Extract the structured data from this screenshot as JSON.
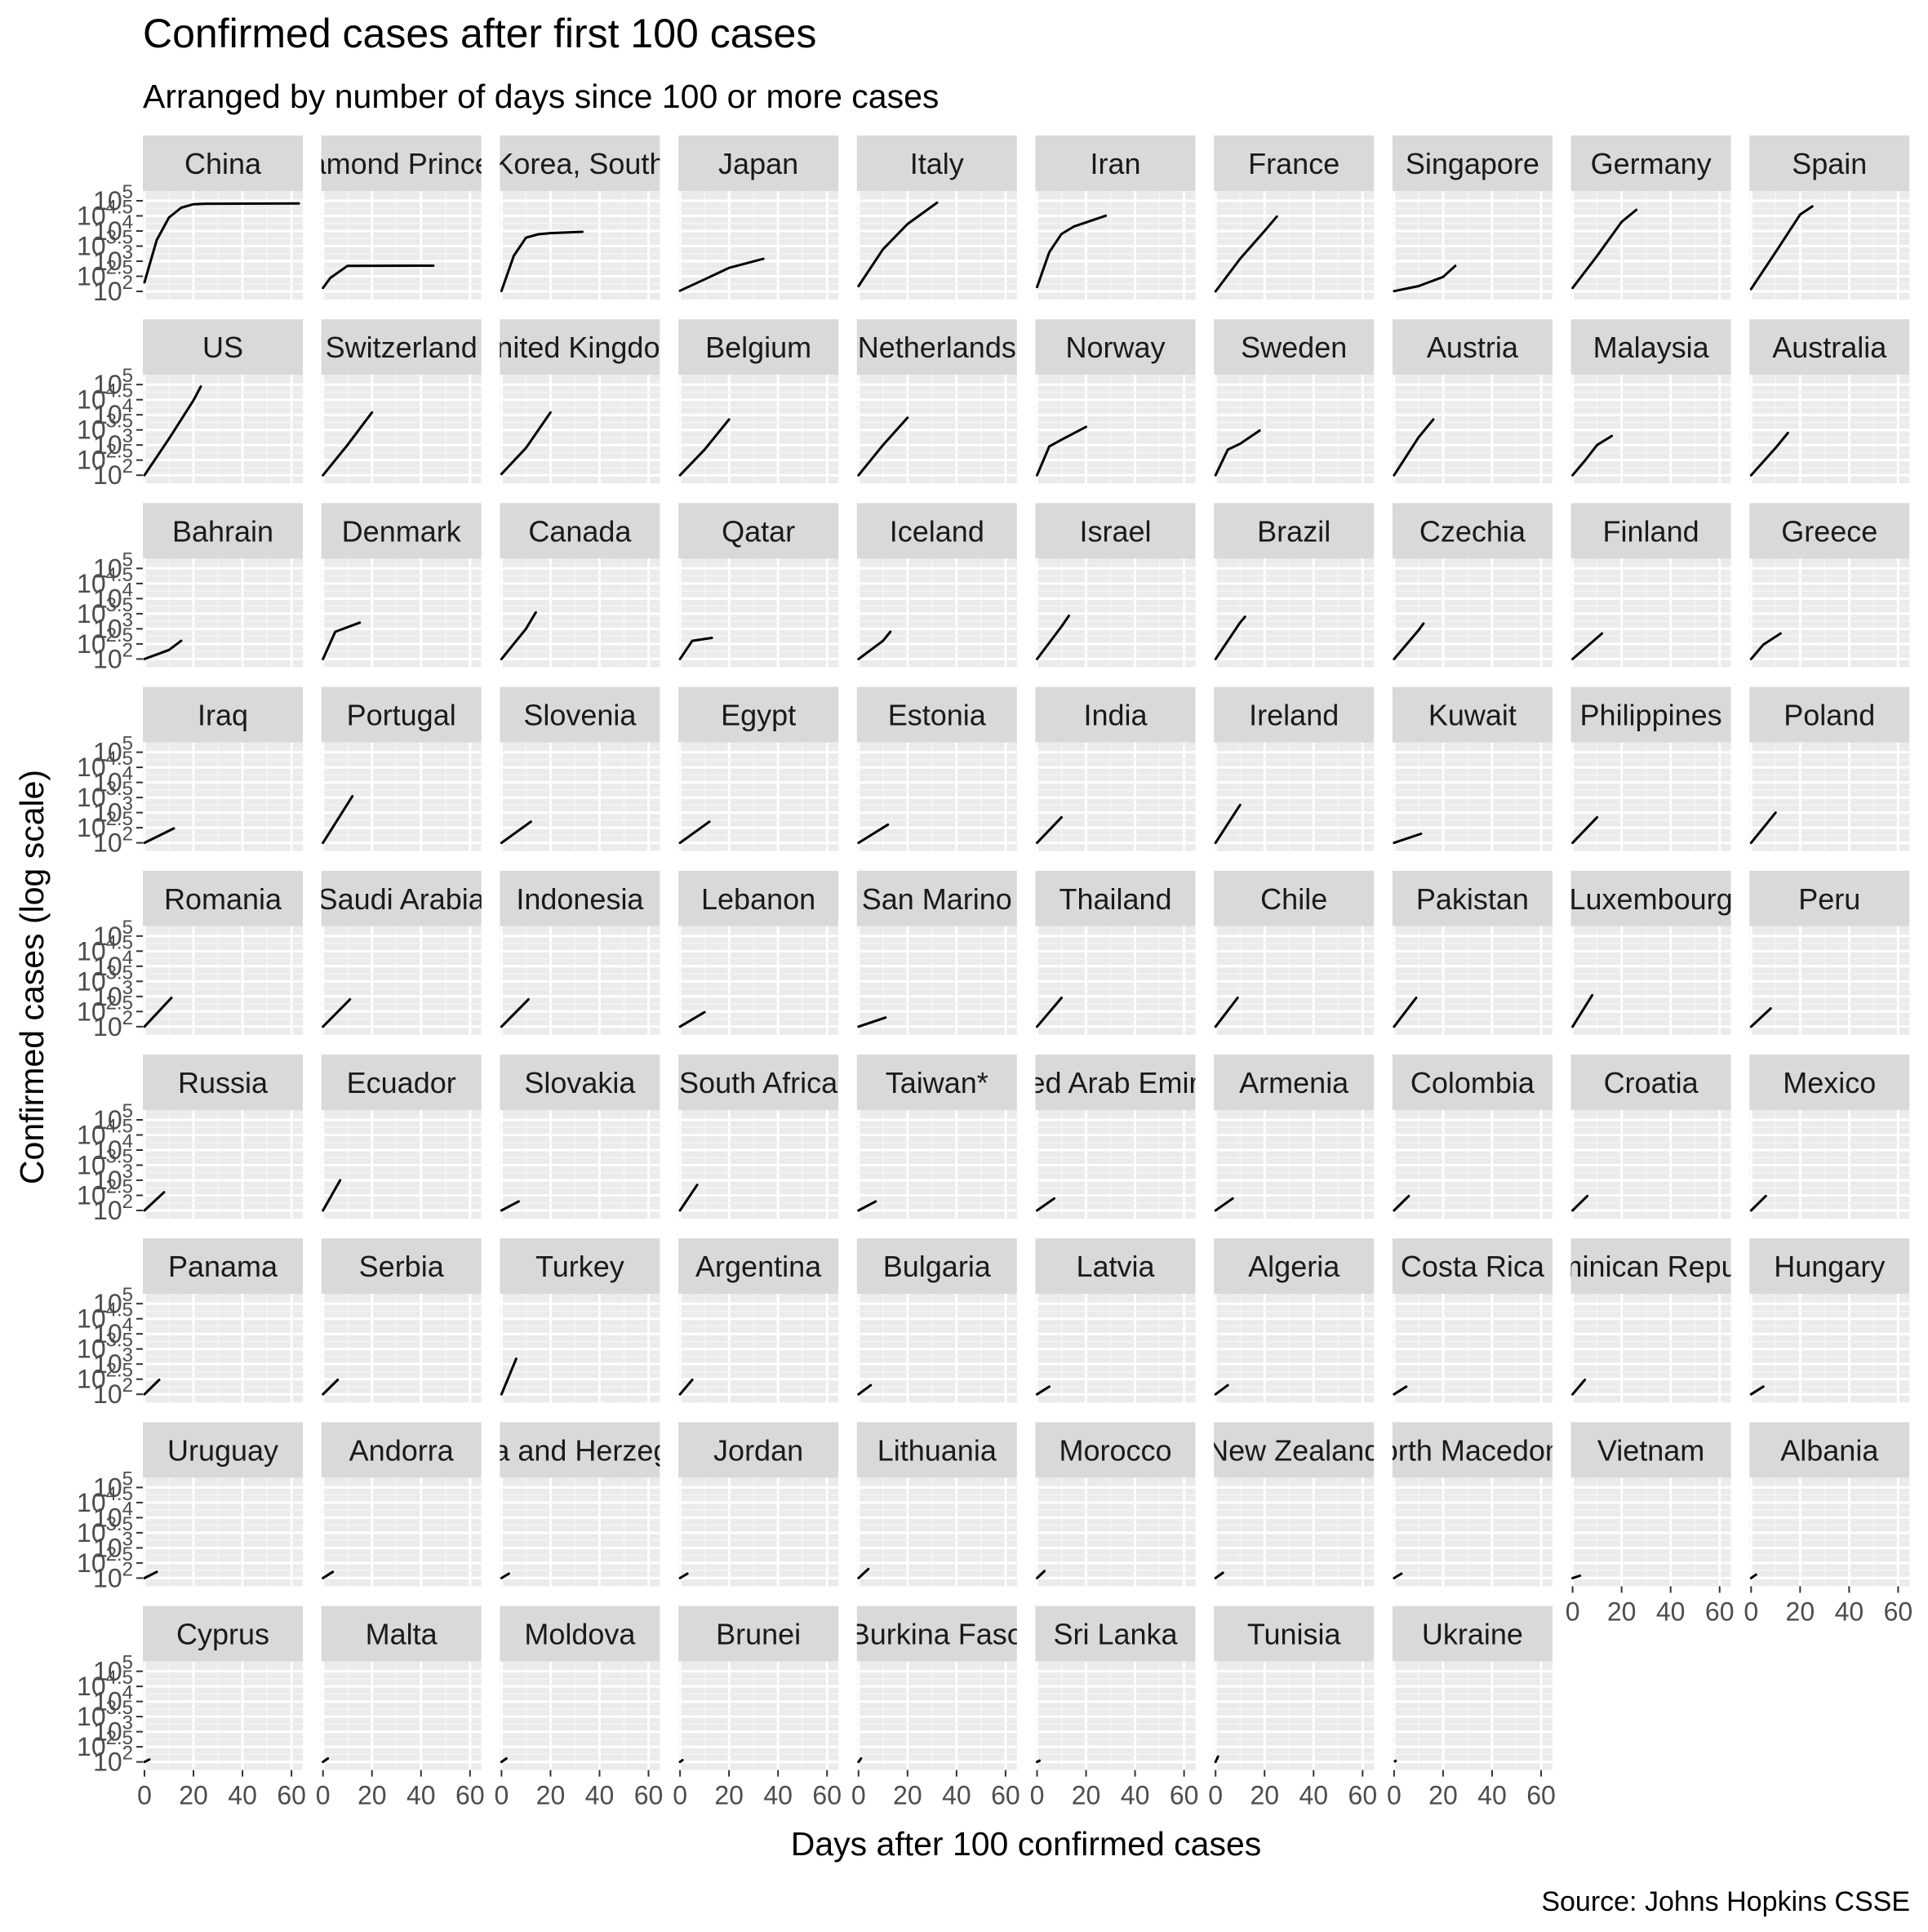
{
  "chart_data": {
    "type": "line",
    "title": "Confirmed cases after first 100 cases",
    "subtitle": "Arranged by number of days since 100 or more cases",
    "xlabel": "Days after 100 confirmed cases",
    "ylabel": "Confirmed cases (log scale)",
    "caption": "Source: Johns Hopkins CSSE",
    "y_scale": "log10",
    "ylim": [
      100,
      100000
    ],
    "xlim": [
      0,
      63
    ],
    "x_ticks": [
      0,
      20,
      40,
      60
    ],
    "y_ticks": [
      {
        "base": "10",
        "exp": "2"
      },
      {
        "base": "10",
        "exp": "2.5"
      },
      {
        "base": "10",
        "exp": "3"
      },
      {
        "base": "10",
        "exp": "3.5"
      },
      {
        "base": "10",
        "exp": "4"
      },
      {
        "base": "10",
        "exp": "4.5"
      },
      {
        "base": "10",
        "exp": "5"
      }
    ],
    "facets": [
      {
        "name": "China",
        "x": [
          0,
          5,
          10,
          15,
          20,
          25,
          63
        ],
        "y": [
          200,
          5000,
          28000,
          59000,
          77000,
          80000,
          81500
        ]
      },
      {
        "name": "Diamond Princess",
        "x": [
          0,
          3,
          10,
          45
        ],
        "y": [
          130,
          280,
          700,
          712
        ]
      },
      {
        "name": "Korea, South",
        "x": [
          0,
          5,
          10,
          15,
          20,
          33
        ],
        "y": [
          104,
          1500,
          6000,
          7800,
          8500,
          9400
        ]
      },
      {
        "name": "Japan",
        "x": [
          0,
          10,
          20,
          34
        ],
        "y": [
          105,
          250,
          600,
          1200
        ]
      },
      {
        "name": "Italy",
        "x": [
          0,
          10,
          20,
          32
        ],
        "y": [
          150,
          2500,
          17000,
          86000
        ]
      },
      {
        "name": "Iran",
        "x": [
          0,
          5,
          10,
          15,
          28
        ],
        "y": [
          139,
          2000,
          8000,
          14000,
          32000
        ]
      },
      {
        "name": "France",
        "x": [
          0,
          10,
          20,
          25
        ],
        "y": [
          100,
          1200,
          10000,
          30000
        ]
      },
      {
        "name": "Singapore",
        "x": [
          0,
          10,
          20,
          25
        ],
        "y": [
          102,
          150,
          300,
          700
        ]
      },
      {
        "name": "Germany",
        "x": [
          0,
          10,
          20,
          26
        ],
        "y": [
          130,
          1500,
          20000,
          50000
        ]
      },
      {
        "name": "Spain",
        "x": [
          0,
          10,
          20,
          25
        ],
        "y": [
          120,
          2000,
          35000,
          65000
        ]
      },
      {
        "name": "US",
        "x": [
          0,
          10,
          20,
          23
        ],
        "y": [
          100,
          1600,
          30000,
          86000
        ]
      },
      {
        "name": "Switzerland",
        "x": [
          0,
          10,
          20
        ],
        "y": [
          100,
          1000,
          12000
        ]
      },
      {
        "name": "United Kingdom",
        "x": [
          0,
          10,
          20
        ],
        "y": [
          110,
          800,
          12000
        ]
      },
      {
        "name": "Belgium",
        "x": [
          0,
          10,
          20
        ],
        "y": [
          100,
          700,
          7000
        ]
      },
      {
        "name": "Netherlands",
        "x": [
          0,
          10,
          20
        ],
        "y": [
          100,
          1000,
          8000
        ]
      },
      {
        "name": "Norway",
        "x": [
          0,
          5,
          10,
          20
        ],
        "y": [
          100,
          900,
          1500,
          4000
        ]
      },
      {
        "name": "Sweden",
        "x": [
          0,
          5,
          10,
          18
        ],
        "y": [
          100,
          700,
          1100,
          3000
        ]
      },
      {
        "name": "Austria",
        "x": [
          0,
          10,
          16
        ],
        "y": [
          100,
          1800,
          7000
        ]
      },
      {
        "name": "Malaysia",
        "x": [
          0,
          5,
          10,
          16
        ],
        "y": [
          100,
          300,
          1000,
          2000
        ]
      },
      {
        "name": "Australia",
        "x": [
          0,
          10,
          15
        ],
        "y": [
          100,
          800,
          2500
        ]
      },
      {
        "name": "Bahrain",
        "x": [
          0,
          10,
          15
        ],
        "y": [
          100,
          200,
          400
        ]
      },
      {
        "name": "Denmark",
        "x": [
          0,
          5,
          15
        ],
        "y": [
          100,
          800,
          1600
        ]
      },
      {
        "name": "Canada",
        "x": [
          0,
          10,
          14
        ],
        "y": [
          100,
          1000,
          3500
        ]
      },
      {
        "name": "Qatar",
        "x": [
          0,
          5,
          13
        ],
        "y": [
          100,
          400,
          500
        ]
      },
      {
        "name": "Iceland",
        "x": [
          0,
          10,
          13
        ],
        "y": [
          100,
          400,
          800
        ]
      },
      {
        "name": "Israel",
        "x": [
          0,
          10,
          13
        ],
        "y": [
          100,
          1200,
          2700
        ]
      },
      {
        "name": "Brazil",
        "x": [
          0,
          10,
          12
        ],
        "y": [
          100,
          1600,
          2500
        ]
      },
      {
        "name": "Czechia",
        "x": [
          0,
          10,
          12
        ],
        "y": [
          100,
          900,
          1500
        ]
      },
      {
        "name": "Finland",
        "x": [
          0,
          12
        ],
        "y": [
          100,
          700
        ]
      },
      {
        "name": "Greece",
        "x": [
          0,
          5,
          12
        ],
        "y": [
          100,
          300,
          700
        ]
      },
      {
        "name": "Iraq",
        "x": [
          0,
          12
        ],
        "y": [
          100,
          300
        ]
      },
      {
        "name": "Portugal",
        "x": [
          0,
          12
        ],
        "y": [
          100,
          3500
        ]
      },
      {
        "name": "Slovenia",
        "x": [
          0,
          12
        ],
        "y": [
          100,
          500
        ]
      },
      {
        "name": "Egypt",
        "x": [
          0,
          12
        ],
        "y": [
          100,
          500
        ]
      },
      {
        "name": "Estonia",
        "x": [
          0,
          12
        ],
        "y": [
          100,
          400
        ]
      },
      {
        "name": "India",
        "x": [
          0,
          10
        ],
        "y": [
          100,
          700
        ]
      },
      {
        "name": "Ireland",
        "x": [
          0,
          10
        ],
        "y": [
          100,
          1800
        ]
      },
      {
        "name": "Kuwait",
        "x": [
          0,
          11
        ],
        "y": [
          100,
          200
        ]
      },
      {
        "name": "Philippines",
        "x": [
          0,
          10
        ],
        "y": [
          100,
          700
        ]
      },
      {
        "name": "Poland",
        "x": [
          0,
          10
        ],
        "y": [
          100,
          1000
        ]
      },
      {
        "name": "Romania",
        "x": [
          0,
          11
        ],
        "y": [
          100,
          900
        ]
      },
      {
        "name": "Saudi Arabia",
        "x": [
          0,
          11
        ],
        "y": [
          100,
          800
        ]
      },
      {
        "name": "Indonesia",
        "x": [
          0,
          11
        ],
        "y": [
          100,
          800
        ]
      },
      {
        "name": "Lebanon",
        "x": [
          0,
          10
        ],
        "y": [
          100,
          300
        ]
      },
      {
        "name": "San Marino",
        "x": [
          0,
          11
        ],
        "y": [
          100,
          200
        ]
      },
      {
        "name": "Thailand",
        "x": [
          0,
          10
        ],
        "y": [
          100,
          900
        ]
      },
      {
        "name": "Chile",
        "x": [
          0,
          9
        ],
        "y": [
          100,
          900
        ]
      },
      {
        "name": "Pakistan",
        "x": [
          0,
          9
        ],
        "y": [
          100,
          900
        ]
      },
      {
        "name": "Luxembourg",
        "x": [
          0,
          8
        ],
        "y": [
          100,
          1100
        ]
      },
      {
        "name": "Peru",
        "x": [
          0,
          8
        ],
        "y": [
          100,
          400
        ]
      },
      {
        "name": "Russia",
        "x": [
          0,
          8
        ],
        "y": [
          100,
          400
        ]
      },
      {
        "name": "Ecuador",
        "x": [
          0,
          7
        ],
        "y": [
          100,
          1000
        ]
      },
      {
        "name": "Slovakia",
        "x": [
          0,
          7
        ],
        "y": [
          100,
          200
        ]
      },
      {
        "name": "South Africa",
        "x": [
          0,
          7
        ],
        "y": [
          100,
          700
        ]
      },
      {
        "name": "Taiwan*",
        "x": [
          0,
          7
        ],
        "y": [
          100,
          200
        ]
      },
      {
        "name": "United Arab Emirates",
        "x": [
          0,
          7
        ],
        "y": [
          100,
          250
        ]
      },
      {
        "name": "Armenia",
        "x": [
          0,
          7
        ],
        "y": [
          100,
          250
        ]
      },
      {
        "name": "Colombia",
        "x": [
          0,
          6
        ],
        "y": [
          100,
          300
        ]
      },
      {
        "name": "Croatia",
        "x": [
          0,
          6
        ],
        "y": [
          100,
          300
        ]
      },
      {
        "name": "Mexico",
        "x": [
          0,
          6
        ],
        "y": [
          100,
          300
        ]
      },
      {
        "name": "Panama",
        "x": [
          0,
          6
        ],
        "y": [
          100,
          300
        ]
      },
      {
        "name": "Serbia",
        "x": [
          0,
          6
        ],
        "y": [
          100,
          300
        ]
      },
      {
        "name": "Turkey",
        "x": [
          0,
          6
        ],
        "y": [
          100,
          1500
        ]
      },
      {
        "name": "Argentina",
        "x": [
          0,
          5
        ],
        "y": [
          100,
          300
        ]
      },
      {
        "name": "Bulgaria",
        "x": [
          0,
          5
        ],
        "y": [
          100,
          200
        ]
      },
      {
        "name": "Latvia",
        "x": [
          0,
          5
        ],
        "y": [
          100,
          180
        ]
      },
      {
        "name": "Algeria",
        "x": [
          0,
          5
        ],
        "y": [
          100,
          200
        ]
      },
      {
        "name": "Costa Rica",
        "x": [
          0,
          5
        ],
        "y": [
          100,
          180
        ]
      },
      {
        "name": "Dominican Republic",
        "x": [
          0,
          5
        ],
        "y": [
          100,
          300
        ]
      },
      {
        "name": "Hungary",
        "x": [
          0,
          5
        ],
        "y": [
          100,
          180
        ]
      },
      {
        "name": "Uruguay",
        "x": [
          0,
          5
        ],
        "y": [
          100,
          160
        ]
      },
      {
        "name": "Andorra",
        "x": [
          0,
          4
        ],
        "y": [
          100,
          160
        ]
      },
      {
        "name": "Bosnia and Herzegovina",
        "x": [
          0,
          3
        ],
        "y": [
          100,
          140
        ]
      },
      {
        "name": "Jordan",
        "x": [
          0,
          3
        ],
        "y": [
          100,
          140
        ]
      },
      {
        "name": "Lithuania",
        "x": [
          0,
          4
        ],
        "y": [
          100,
          200
        ]
      },
      {
        "name": "Morocco",
        "x": [
          0,
          3
        ],
        "y": [
          100,
          170
        ]
      },
      {
        "name": "New Zealand",
        "x": [
          0,
          3
        ],
        "y": [
          100,
          150
        ]
      },
      {
        "name": "North Macedonia",
        "x": [
          0,
          3
        ],
        "y": [
          100,
          140
        ]
      },
      {
        "name": "Vietnam",
        "x": [
          0,
          3
        ],
        "y": [
          100,
          120
        ]
      },
      {
        "name": "Albania",
        "x": [
          0,
          2
        ],
        "y": [
          100,
          130
        ]
      },
      {
        "name": "Cyprus",
        "x": [
          0,
          2
        ],
        "y": [
          100,
          120
        ]
      },
      {
        "name": "Malta",
        "x": [
          0,
          2
        ],
        "y": [
          100,
          130
        ]
      },
      {
        "name": "Moldova",
        "x": [
          0,
          2
        ],
        "y": [
          100,
          130
        ]
      },
      {
        "name": "Brunei",
        "x": [
          0,
          1
        ],
        "y": [
          100,
          115
        ]
      },
      {
        "name": "Burkina Faso",
        "x": [
          0,
          1
        ],
        "y": [
          100,
          130
        ]
      },
      {
        "name": "Sri Lanka",
        "x": [
          0,
          1
        ],
        "y": [
          100,
          110
        ]
      },
      {
        "name": "Tunisia",
        "x": [
          0,
          1
        ],
        "y": [
          100,
          150
        ]
      },
      {
        "name": "Ukraine",
        "x": [
          0
        ],
        "y": [
          100
        ]
      }
    ]
  }
}
